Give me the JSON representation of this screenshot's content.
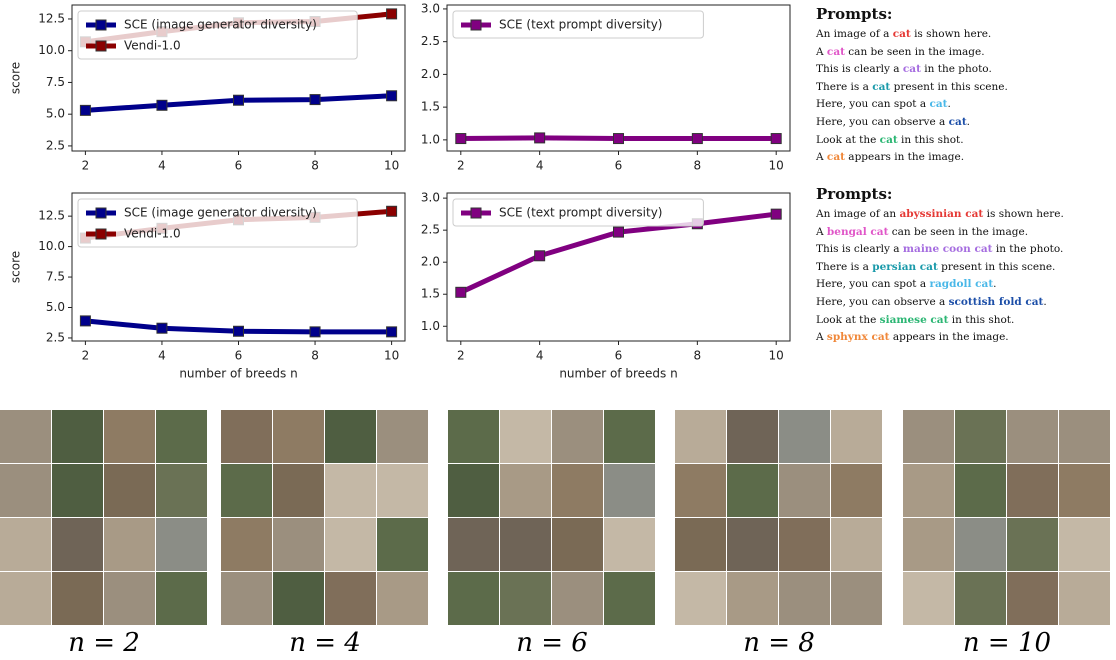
{
  "chart_data": [
    {
      "type": "line",
      "y_label": "score",
      "x": [
        2,
        4,
        6,
        8,
        10
      ],
      "xlim": [
        1.65,
        10.35
      ],
      "xticks": [
        2,
        4,
        6,
        8,
        10
      ],
      "ylim": [
        2.1,
        13.6
      ],
      "yticks": [
        2.5,
        {
          "value": 5,
          "label": "5.0"
        },
        7.5,
        {
          "value": 10,
          "label": "10.0"
        },
        12.5
      ],
      "legend": "upper left",
      "series": [
        {
          "name": "SCE (image generator diversity)",
          "color": "#00008b",
          "values": [
            5.3,
            5.7,
            6.1,
            6.15,
            6.45
          ]
        },
        {
          "name": "Vendi-1.0",
          "color": "#8b0000",
          "values": [
            10.7,
            11.5,
            12.2,
            12.3,
            12.9
          ]
        }
      ]
    },
    {
      "type": "line",
      "x": [
        2,
        4,
        6,
        8,
        10
      ],
      "xlim": [
        1.65,
        10.35
      ],
      "xticks": [
        2,
        4,
        6,
        8,
        10
      ],
      "ylim": [
        0.83,
        3.06
      ],
      "yticks": [
        {
          "value": 1,
          "label": "1.0"
        },
        1.5,
        {
          "value": 2,
          "label": "2.0"
        },
        2.5,
        {
          "value": 3,
          "label": "3.0"
        }
      ],
      "legend": "upper left",
      "series": [
        {
          "name": "SCE (text prompt diversity)",
          "color": "#800080",
          "values": [
            1.02,
            1.03,
            1.02,
            1.02,
            1.02
          ]
        }
      ]
    },
    {
      "type": "line",
      "y_label": "score",
      "x_label": "number of breeds n",
      "x": [
        2,
        4,
        6,
        8,
        10
      ],
      "xlim": [
        1.65,
        10.35
      ],
      "xticks": [
        2,
        4,
        6,
        8,
        10
      ],
      "ylim": [
        2.25,
        14.4
      ],
      "yticks": [
        2.5,
        {
          "value": 5,
          "label": "5.0"
        },
        7.5,
        {
          "value": 10,
          "label": "10.0"
        },
        12.5
      ],
      "legend": "upper left",
      "series": [
        {
          "name": "SCE (image generator diversity)",
          "color": "#00008b",
          "values": [
            3.9,
            3.3,
            3.05,
            3.0,
            3.0
          ]
        },
        {
          "name": "Vendi-1.0",
          "color": "#8b0000",
          "values": [
            10.7,
            11.5,
            12.2,
            12.4,
            12.9
          ]
        }
      ]
    },
    {
      "type": "line",
      "x_label": "number of breeds n",
      "x": [
        2,
        4,
        6,
        8,
        10
      ],
      "xlim": [
        1.65,
        10.35
      ],
      "xticks": [
        2,
        4,
        6,
        8,
        10
      ],
      "ylim": [
        0.77,
        3.08
      ],
      "yticks": [
        {
          "value": 1,
          "label": "1.0"
        },
        1.5,
        {
          "value": 2,
          "label": "2.0"
        },
        2.5,
        {
          "value": 3,
          "label": "3.0"
        }
      ],
      "legend": "upper left",
      "series": [
        {
          "name": "SCE (text prompt diversity)",
          "color": "#800080",
          "values": [
            1.53,
            2.1,
            2.47,
            2.6,
            2.75
          ]
        }
      ]
    }
  ],
  "prompts": [
    {
      "title": "Prompts:",
      "lines": [
        [
          {
            "text": "An image of a "
          },
          {
            "text": "cat",
            "color": "#e53935"
          },
          {
            "text": " is shown here."
          }
        ],
        [
          {
            "text": "A "
          },
          {
            "text": "cat",
            "color": "#e056c8"
          },
          {
            "text": " can be seen in the image."
          }
        ],
        [
          {
            "text": "This is clearly a "
          },
          {
            "text": "cat",
            "color": "#a66ee0"
          },
          {
            "text": " in the photo."
          }
        ],
        [
          {
            "text": "There is a "
          },
          {
            "text": "cat",
            "color": "#1a9aaa"
          },
          {
            "text": " present in this scene."
          }
        ],
        [
          {
            "text": "Here, you can spot a "
          },
          {
            "text": "cat",
            "color": "#4ab8e8"
          },
          {
            "text": "."
          }
        ],
        [
          {
            "text": "Here, you can observe a "
          },
          {
            "text": "cat",
            "color": "#1d4fa8"
          },
          {
            "text": "."
          }
        ],
        [
          {
            "text": "Look at the "
          },
          {
            "text": "cat",
            "color": "#2bb673"
          },
          {
            "text": " in this shot."
          }
        ],
        [
          {
            "text": "A "
          },
          {
            "text": "cat",
            "color": "#f0883a"
          },
          {
            "text": " appears in the image."
          }
        ]
      ]
    },
    {
      "title": "Prompts:",
      "lines": [
        [
          {
            "text": "An image of an "
          },
          {
            "text": "abyssinian cat",
            "color": "#e53935"
          },
          {
            "text": " is shown here."
          }
        ],
        [
          {
            "text": "A "
          },
          {
            "text": "bengal cat",
            "color": "#e056c8"
          },
          {
            "text": " can be seen in the image."
          }
        ],
        [
          {
            "text": "This is clearly a "
          },
          {
            "text": "maine coon cat",
            "color": "#a66ee0"
          },
          {
            "text": " in the photo."
          }
        ],
        [
          {
            "text": "There is a "
          },
          {
            "text": "persian cat",
            "color": "#1a9aaa"
          },
          {
            "text": " present in this scene."
          }
        ],
        [
          {
            "text": "Here, you can spot a "
          },
          {
            "text": "ragdoll cat",
            "color": "#4ab8e8"
          },
          {
            "text": "."
          }
        ],
        [
          {
            "text": "Here, you can observe a "
          },
          {
            "text": "scottish fold cat",
            "color": "#1d4fa8"
          },
          {
            "text": "."
          }
        ],
        [
          {
            "text": "Look at the "
          },
          {
            "text": "siamese cat",
            "color": "#2bb673"
          },
          {
            "text": " in this shot."
          }
        ],
        [
          {
            "text": "A "
          },
          {
            "text": "sphynx cat",
            "color": "#f0883a"
          },
          {
            "text": " appears in the image."
          }
        ]
      ]
    }
  ],
  "image_captions": [
    "n = 2",
    "n = 4",
    "n = 6",
    "n = 8",
    "n = 10"
  ]
}
